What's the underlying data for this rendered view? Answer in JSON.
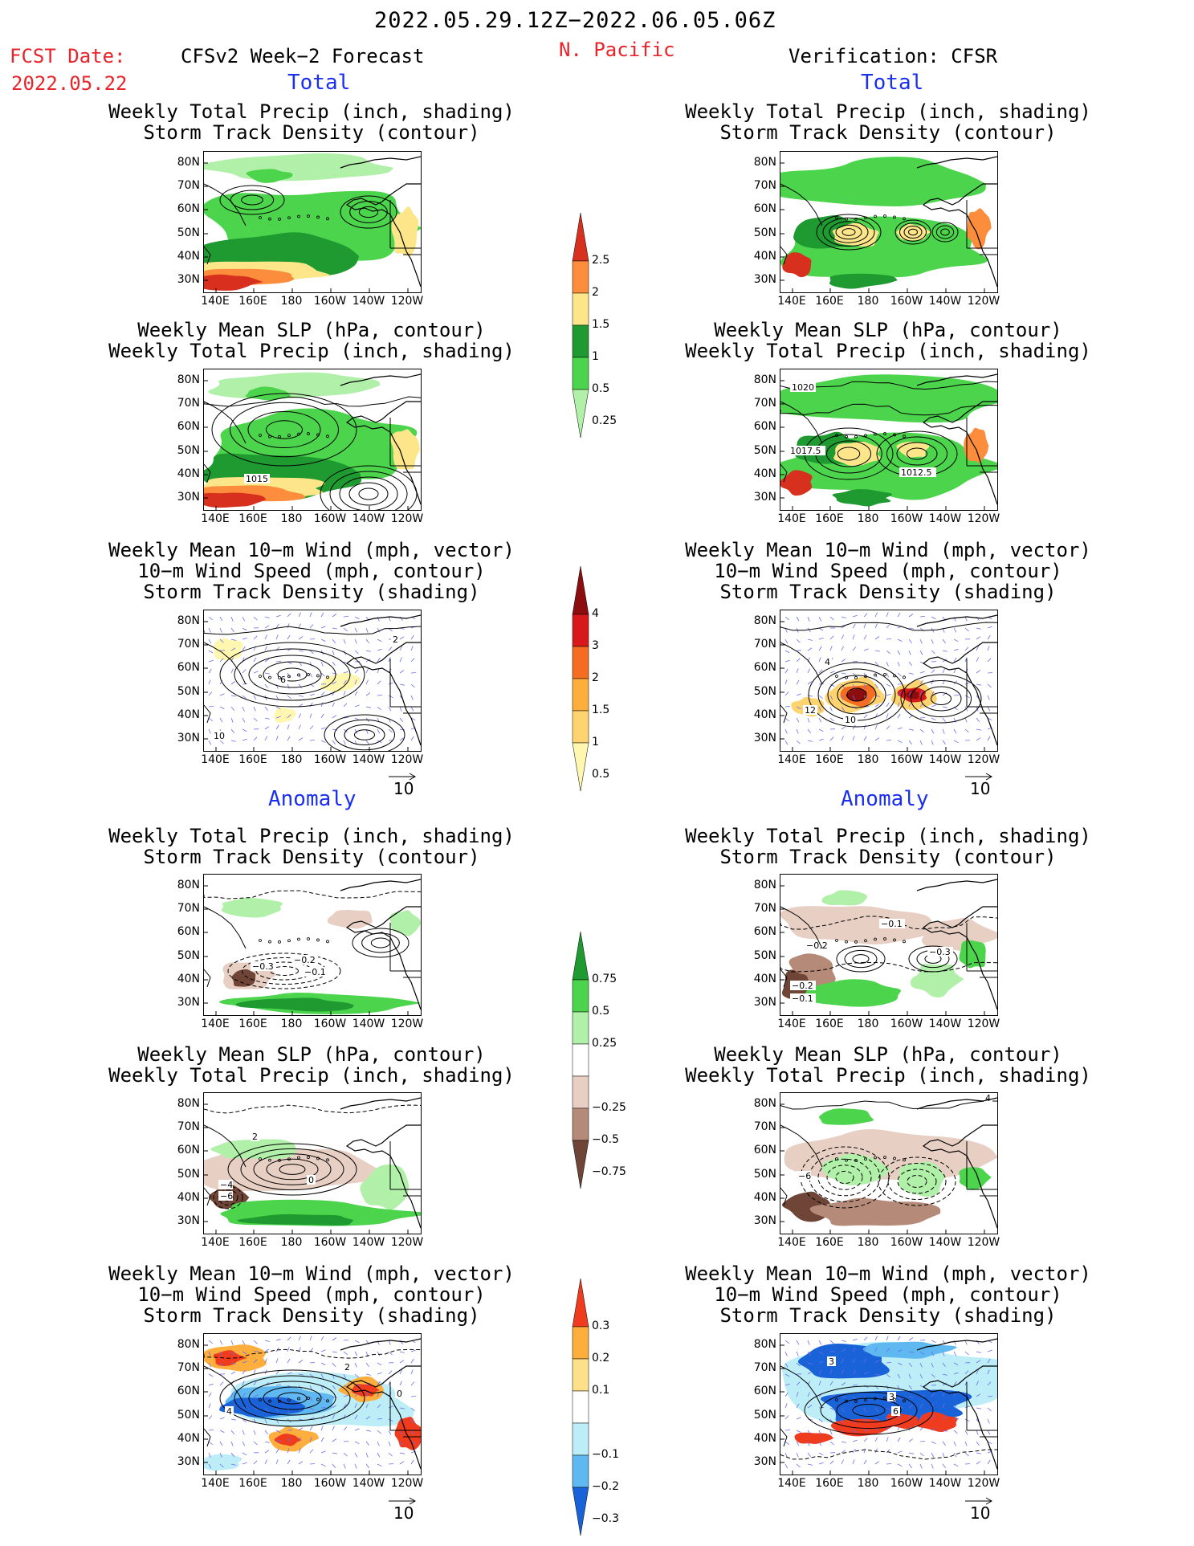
{
  "header": {
    "date_range": "2022.05.29.12Z−2022.06.05.06Z",
    "region": "N. Pacific",
    "fcst_label": "FCST Date:",
    "fcst_date": "2022.05.22",
    "left_title": "CFSv2 Week−2 Forecast",
    "right_title": "Verification: CFSR",
    "total_label": "Total",
    "anomaly_label": "Anomaly"
  },
  "panel_titles": {
    "precip_storm": [
      "Weekly Total Precip (inch, shading)",
      "Storm Track Density (contour)"
    ],
    "slp_precip": [
      "Weekly Mean SLP (hPa, contour)",
      "Weekly Total Precip (inch, shading)"
    ],
    "wind_storm": [
      "Weekly Mean 10−m Wind (mph, vector)",
      "10−m Wind Speed (mph, contour)",
      "Storm Track Density (shading)"
    ]
  },
  "axes": {
    "lat_labels": [
      "80N",
      "70N",
      "60N",
      "50N",
      "40N",
      "30N"
    ],
    "lon_labels": [
      "140E",
      "160E",
      "180",
      "160W",
      "140W",
      "120W"
    ]
  },
  "vector_ref": "10",
  "colorbars": {
    "precip_total": {
      "labels": [
        "2.5",
        "2",
        "1.5",
        "1",
        "0.5",
        "0.25"
      ],
      "colors": [
        "#d7301f",
        "#fc8d3c",
        "#fde68a",
        "#1e9a30",
        "#4cd44c",
        "#b0f0a8"
      ]
    },
    "storm_total": {
      "labels": [
        "4",
        "3",
        "2",
        "1.5",
        "1",
        "0.5"
      ],
      "colors": [
        "#8b0d0d",
        "#d7191c",
        "#f46d23",
        "#fdae3c",
        "#fed470",
        "#fff7b0"
      ]
    },
    "precip_anom": {
      "labels": [
        "0.75",
        "0.5",
        "0.25",
        "−0.25",
        "−0.5",
        "−0.75"
      ],
      "colors": [
        "#1e9a30",
        "#4cd44c",
        "#b0f0a8",
        "#ffffff",
        "#e8cfc4",
        "#b58a78",
        "#6e4536"
      ]
    },
    "storm_anom": {
      "labels": [
        "0.3",
        "0.2",
        "0.1",
        "−0.1",
        "−0.2",
        "−0.3"
      ],
      "colors": [
        "#f03c1e",
        "#fdae3c",
        "#fee08b",
        "#ffffff",
        "#bdeef8",
        "#5fb8f0",
        "#1a62d8"
      ]
    }
  },
  "contour_labels": {
    "slp_fcst": "1015",
    "slp_obs": [
      "1020",
      "1017.5",
      "1012.5"
    ],
    "wind_fcst": [
      "2",
      "6",
      "10"
    ],
    "wind_obs": [
      "4",
      "12",
      "10"
    ],
    "precip_anom_fcst": [
      "−0.3",
      "−0.2",
      "−0.1"
    ],
    "precip_anom_obs": [
      "−0.1",
      "−0.2",
      "−0.3",
      "−0.2",
      "−0.1"
    ],
    "slp_anom_fcst": [
      "2",
      "0",
      "−4",
      "−6"
    ],
    "slp_anom_obs": [
      "4",
      "−6"
    ],
    "wind_anom_fcst": [
      "2",
      "4",
      "0"
    ],
    "wind_anom_obs": [
      "3",
      "3",
      "6"
    ]
  }
}
